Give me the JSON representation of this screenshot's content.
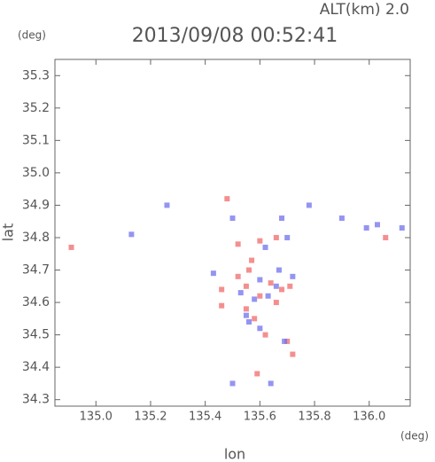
{
  "chart_data": {
    "type": "scatter",
    "title": "2013/09/08 00:52:41",
    "annotation": "ALT(km) 2.0",
    "y_unit": "(deg)",
    "x_unit": "(deg)",
    "xlabel": "lon",
    "ylabel": "lat",
    "xlim": [
      134.85,
      136.15
    ],
    "ylim": [
      34.28,
      35.35
    ],
    "xticks": [
      {
        "value": 135.0,
        "label": "135.0"
      },
      135.2,
      135.4,
      135.6,
      135.8,
      {
        "value": 136.0,
        "label": "136.0"
      }
    ],
    "yticks": [
      34.3,
      34.4,
      34.5,
      34.6,
      34.7,
      34.8,
      34.9,
      {
        "value": 35.0,
        "label": "35.0"
      },
      35.1,
      35.2,
      35.3
    ],
    "series": [
      {
        "color": "#f06a6a",
        "x": [
          135.55,
          135.6,
          135.68,
          135.71,
          135.58,
          135.72,
          135.59,
          135.46,
          135.46,
          135.56,
          135.62,
          135.66,
          135.52,
          135.55,
          136.06,
          134.91,
          135.48,
          135.52,
          135.66,
          135.6,
          135.57,
          135.7,
          135.64
        ],
        "y": [
          34.65,
          34.62,
          34.64,
          34.65,
          34.55,
          34.44,
          34.38,
          34.59,
          34.64,
          34.7,
          34.5,
          34.6,
          34.68,
          34.58,
          34.8,
          34.77,
          34.92,
          34.78,
          34.8,
          34.79,
          34.73,
          34.48,
          34.66
        ]
      },
      {
        "color": "#7070ee",
        "x": [
          135.6,
          135.66,
          135.63,
          135.58,
          135.53,
          135.69,
          135.99,
          136.12,
          135.13,
          135.43,
          135.62,
          135.7,
          135.78,
          135.68,
          135.5,
          135.55,
          135.6,
          135.64,
          135.5,
          135.56,
          135.67,
          136.03,
          135.26,
          135.9,
          135.72
        ],
        "y": [
          34.67,
          34.65,
          34.62,
          34.61,
          34.63,
          34.48,
          34.83,
          34.83,
          34.81,
          34.69,
          34.77,
          34.8,
          34.9,
          34.86,
          34.86,
          34.56,
          34.52,
          34.35,
          34.35,
          34.54,
          34.7,
          34.84,
          34.9,
          34.86,
          34.68
        ]
      }
    ]
  }
}
